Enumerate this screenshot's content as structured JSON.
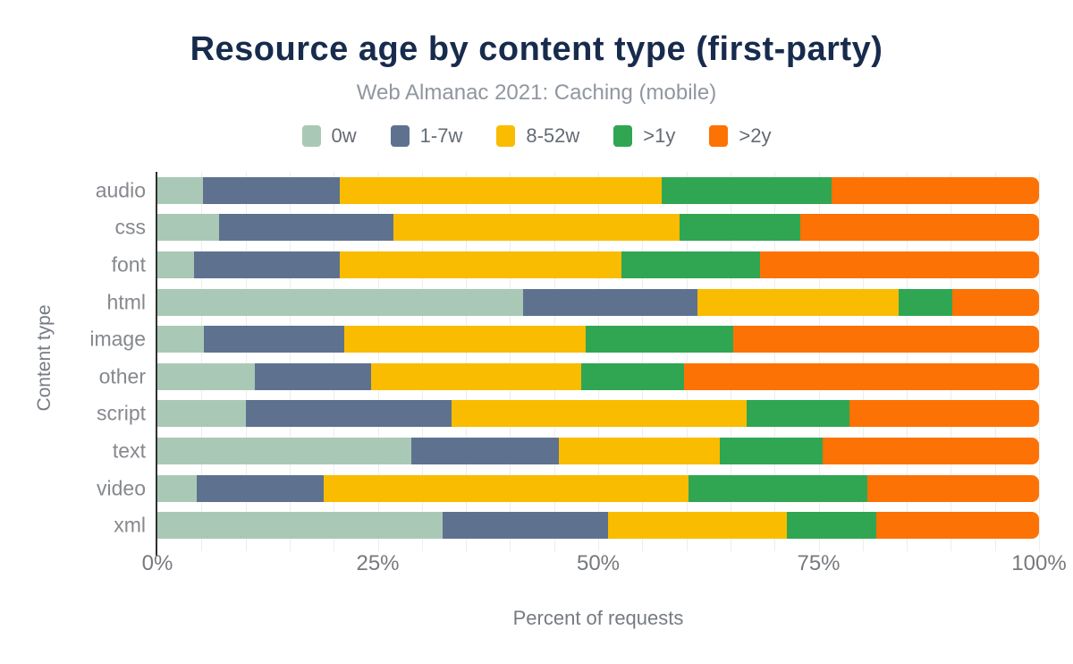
{
  "chart": {
    "title": "Resource age by content type (first-party)",
    "subtitle": "Web Almanac 2021: Caching (mobile)",
    "xlabel": "Percent of requests",
    "ylabel": "Content type"
  },
  "chart_data": {
    "type": "bar",
    "orientation": "horizontal",
    "stacked": true,
    "title": "Resource age by content type (first-party)",
    "subtitle": "Web Almanac 2021: Caching (mobile)",
    "xlabel": "Percent of requests",
    "ylabel": "Content type",
    "xlim": [
      0,
      100
    ],
    "grid_step_percent": 5,
    "legend_position": "top",
    "categories": [
      "audio",
      "css",
      "font",
      "html",
      "image",
      "other",
      "script",
      "text",
      "video",
      "xml"
    ],
    "series": [
      {
        "name": "0w",
        "color": "#a9c9b6",
        "values": [
          5.2,
          7.0,
          4.2,
          41.5,
          5.3,
          11.1,
          10.0,
          28.8,
          4.5,
          32.4
        ]
      },
      {
        "name": "1-7w",
        "color": "#5e7290",
        "values": [
          15.5,
          19.8,
          16.5,
          19.8,
          15.9,
          13.1,
          23.4,
          16.7,
          14.4,
          18.7
        ]
      },
      {
        "name": "8-52w",
        "color": "#f9bc00",
        "values": [
          36.5,
          32.4,
          31.9,
          22.8,
          27.4,
          23.9,
          33.4,
          18.3,
          41.3,
          20.3
        ]
      },
      {
        "name": ">1y",
        "color": "#30a653",
        "values": [
          19.3,
          13.7,
          15.8,
          6.1,
          16.7,
          11.6,
          11.7,
          11.7,
          20.3,
          10.1
        ]
      },
      {
        "name": ">2y",
        "color": "#fd7205",
        "values": [
          23.5,
          27.1,
          31.6,
          9.8,
          34.7,
          40.3,
          21.5,
          24.5,
          19.5,
          18.5
        ]
      }
    ],
    "x_ticks": {
      "labels": [
        "0%",
        "25%",
        "50%",
        "75%",
        "100%"
      ],
      "positions": [
        0,
        25,
        50,
        75,
        100
      ]
    }
  },
  "colors": {
    "title": "#172b4d",
    "subtitle": "#9097a0",
    "axis_line": "#2f2f2f",
    "gridline": "#ededed",
    "tick_label": "#76797e"
  }
}
